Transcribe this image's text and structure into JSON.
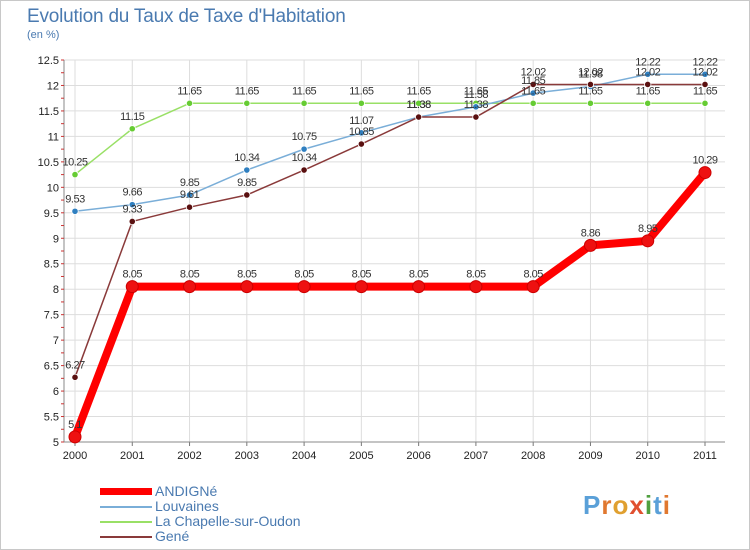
{
  "header": {
    "title": "Evolution du Taux de Taxe d'Habitation",
    "unit": "(en %)"
  },
  "logo": {
    "text": "Proxiti",
    "letters": [
      {
        "ch": "P",
        "color": "#5aa0d8"
      },
      {
        "ch": "r",
        "color": "#e07830"
      },
      {
        "ch": "o",
        "color": "#e0a030"
      },
      {
        "ch": "x",
        "color": "#e05030"
      },
      {
        "ch": "i",
        "color": "#50a040"
      },
      {
        "ch": "t",
        "color": "#5aa0d8"
      },
      {
        "ch": "i",
        "color": "#e07830"
      }
    ]
  },
  "chart_data": {
    "type": "line",
    "x": [
      2000,
      2001,
      2002,
      2003,
      2004,
      2005,
      2006,
      2007,
      2008,
      2009,
      2010,
      2011
    ],
    "ylim": [
      5,
      12.5
    ],
    "yticks": [
      "5",
      "5.5",
      "6",
      "6.5",
      "7",
      "7.5",
      "8",
      "8.5",
      "9",
      "9.5",
      "10",
      "10.5",
      "11",
      "11.5",
      "12",
      "12.5"
    ],
    "grid": true,
    "legend_position": "bottom-left",
    "series": [
      {
        "name": "ANDIGNé",
        "color": "#ff0000",
        "marker_color": "#ee1111",
        "values": [
          5.1,
          8.05,
          8.05,
          8.05,
          8.05,
          8.05,
          8.05,
          8.05,
          8.05,
          8.86,
          8.95,
          10.29
        ],
        "labels": [
          "5.1",
          "8.05",
          "8.05",
          "8.05",
          "8.05",
          "8.05",
          "8.05",
          "8.05",
          "8.05",
          "8.86",
          "8.95",
          "10.29"
        ]
      },
      {
        "name": "Louvaines",
        "color": "#7aaed8",
        "marker_color": "#2f7fc0",
        "values": [
          9.53,
          9.66,
          9.85,
          10.34,
          10.75,
          11.07,
          11.38,
          11.58,
          11.85,
          11.98,
          12.22,
          12.22
        ],
        "labels": [
          "9.53",
          "9.66",
          "9.85",
          "10.34",
          "10.75",
          "11.07",
          "11.38",
          "11.58",
          "11.85",
          "11.98",
          "12.22",
          "12.22"
        ]
      },
      {
        "name": "La Chapelle-sur-Oudon",
        "color": "#99e066",
        "marker_color": "#66cc33",
        "values": [
          10.25,
          11.15,
          11.65,
          11.65,
          11.65,
          11.65,
          11.65,
          11.65,
          11.65,
          11.65,
          11.65,
          11.65
        ],
        "labels": [
          "10.25",
          "11.15",
          "11.65",
          "11.65",
          "11.65",
          "11.65",
          "11.65",
          "11.65",
          "11.65",
          "11.65",
          "11.65",
          "11.65"
        ]
      },
      {
        "name": "Gené",
        "color": "#8a3a3a",
        "marker_color": "#5a1010",
        "values": [
          6.27,
          9.33,
          9.61,
          9.85,
          10.34,
          10.85,
          11.38,
          11.38,
          12.02,
          12.02,
          12.02,
          12.02
        ],
        "labels": [
          "6.27",
          "9.33",
          "9.61",
          "9.85",
          "10.34",
          "10.85",
          "11.38",
          "11.38",
          "12.02",
          "12.02",
          "12.02",
          "12.02"
        ]
      }
    ]
  }
}
